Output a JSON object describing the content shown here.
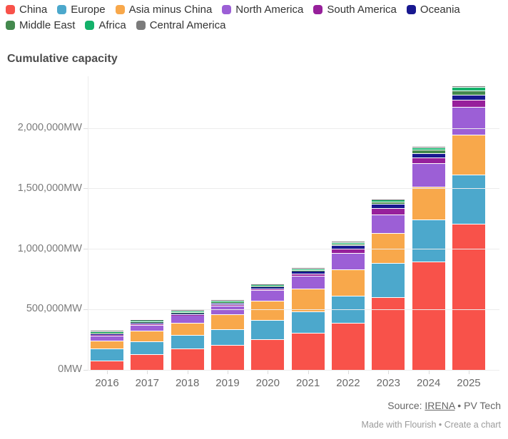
{
  "title": "Cumulative capacity",
  "footer": {
    "source_prefix": "Source: ",
    "source_link": "IRENA",
    "source_suffix": " • PV Tech",
    "credit_made": "Made with Flourish",
    "credit_separator": " • ",
    "credit_create": "Create a chart"
  },
  "chart_data": {
    "type": "bar",
    "stacked": true,
    "title": "Cumulative capacity",
    "unit": "MW",
    "legend_position": "top",
    "grid": true,
    "ylim": [
      0,
      2433000
    ],
    "y_ticks": [
      {
        "value": 0,
        "label": "0MW"
      },
      {
        "value": 500000,
        "label": "500,000MW"
      },
      {
        "value": 1000000,
        "label": "1,000,000MW"
      },
      {
        "value": 1500000,
        "label": "1,500,000MW"
      },
      {
        "value": 2000000,
        "label": "2,000,000MW"
      }
    ],
    "categories": [
      "2016",
      "2017",
      "2018",
      "2019",
      "2020",
      "2021",
      "2022",
      "2023",
      "2024",
      "2025"
    ],
    "series": [
      {
        "name": "China",
        "color": "#F8524A",
        "values": [
          75000,
          131000,
          175000,
          204000,
          254000,
          306000,
          390000,
          605000,
          895000,
          1210000
        ]
      },
      {
        "name": "Europe",
        "color": "#4CA8CC",
        "values": [
          104000,
          107000,
          115000,
          132000,
          158000,
          180000,
          226000,
          280000,
          350000,
          405000
        ]
      },
      {
        "name": "Asia minus China",
        "color": "#F8A84B",
        "values": [
          65000,
          85000,
          100000,
          125000,
          158000,
          190000,
          215000,
          250000,
          270000,
          335000
        ]
      },
      {
        "name": "North America",
        "color": "#9C5FD6",
        "values": [
          40000,
          51000,
          62000,
          72000,
          90000,
          105000,
          140000,
          150000,
          195000,
          230000
        ]
      },
      {
        "name": "South America",
        "color": "#97209B",
        "values": [
          3000,
          4000,
          6000,
          8000,
          11000,
          16000,
          35000,
          55000,
          48000,
          60000
        ]
      },
      {
        "name": "Oceania",
        "color": "#181890",
        "values": [
          6000,
          7000,
          10000,
          13000,
          18000,
          22000,
          27000,
          33000,
          36000,
          40000
        ]
      },
      {
        "name": "Middle East",
        "color": "#44894E",
        "values": [
          1000,
          2000,
          3000,
          5000,
          7000,
          9000,
          12000,
          20000,
          28000,
          35000
        ]
      },
      {
        "name": "Africa",
        "color": "#14B16A",
        "values": [
          3000,
          4000,
          6000,
          7000,
          9000,
          10000,
          12000,
          17000,
          23000,
          30000
        ]
      },
      {
        "name": "Central America",
        "color": "#7B7B7B",
        "values": [
          1000,
          1000,
          2000,
          2000,
          2000,
          3000,
          3000,
          4000,
          5000,
          6000
        ]
      }
    ]
  }
}
